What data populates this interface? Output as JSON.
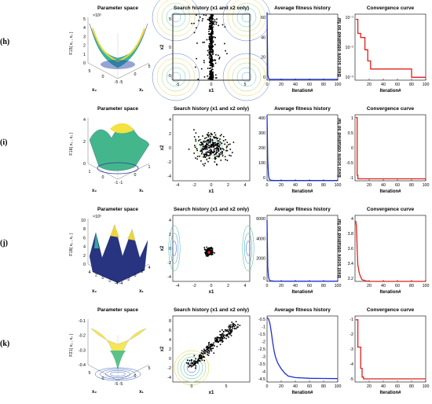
{
  "rows": [
    {
      "id": "h",
      "label": "(h)",
      "param": {
        "title": "Parameter space",
        "zlabel": "F15( x₁ , x₂ )",
        "exponent": "×10⁵",
        "zticks": [
          "5",
          "4",
          "3",
          "2",
          "1",
          "0"
        ],
        "x2ticks": [
          "5",
          "0",
          "-5"
        ],
        "x1ticks": [
          "-5",
          "0",
          "5"
        ],
        "x2label": "x₂",
        "x1label": "x₁"
      },
      "search": {
        "title": "Search history (x1 and x2 only)",
        "xlabel": "x1",
        "ylabel": "x2",
        "xticks": [
          "-5",
          "0",
          "5"
        ],
        "yticks": [
          "5",
          "0",
          "-5"
        ]
      },
      "fitness": {
        "title": "Average fitness history",
        "xlabel": "Iteration#",
        "xticks": [
          "0",
          "20",
          "40",
          "60",
          "80",
          "100"
        ],
        "yticks": [
          "60",
          "40",
          "20",
          "0"
        ]
      },
      "conv": {
        "title": "Convergence curve",
        "xlabel": "Iteration#",
        "ylabel": "Best score obtained so far",
        "xticks": [
          "20",
          "40",
          "60",
          "80",
          "100"
        ],
        "yticks": [
          "10⁻¹",
          "10⁻²",
          "10⁻³"
        ]
      }
    },
    {
      "id": "i",
      "label": "(i)",
      "param": {
        "title": "Parameter space",
        "zlabel": "F16( x₁ , x₂ )",
        "exponent": "",
        "zticks": [
          "4",
          "2",
          "0"
        ],
        "x2ticks": [
          "1",
          "0",
          "-1"
        ],
        "x1ticks": [
          "-1",
          "0",
          "1"
        ],
        "x2label": "x₂",
        "x1label": "x₁"
      },
      "search": {
        "title": "Search history (x1 and x2 only)",
        "xlabel": "x1",
        "ylabel": "x2",
        "xticks": [
          "-4",
          "-2",
          "0",
          "2",
          "4"
        ],
        "yticks": [
          "4",
          "2",
          "0",
          "-2",
          "-4"
        ]
      },
      "fitness": {
        "title": "Average fitness history",
        "xlabel": "Iteration#",
        "xticks": [
          "0",
          "20",
          "40",
          "60",
          "80",
          "100"
        ],
        "yticks": [
          "400",
          "300",
          "200",
          "100",
          "0"
        ]
      },
      "conv": {
        "title": "Convergence curve",
        "xlabel": "Iteration#",
        "ylabel": "Best score obtained so far",
        "xticks": [
          "20",
          "40",
          "60",
          "80",
          "100"
        ],
        "yticks": [
          "1",
          "0.5",
          "0",
          "-0.5",
          "-1"
        ]
      }
    },
    {
      "id": "j",
      "label": "(j)",
      "param": {
        "title": "Parameter space",
        "zlabel": "F18( x₁ , x₂ )",
        "exponent": "×10⁵",
        "zticks": [
          "10",
          "8",
          "6",
          "4",
          "2",
          "0"
        ],
        "x2ticks": [
          "4",
          "2",
          "0",
          "-2",
          "-4"
        ],
        "x1ticks": [
          "-4",
          "-2",
          "0",
          "2",
          "4"
        ],
        "x2label": "x₂",
        "x1label": "x₁"
      },
      "search": {
        "title": "Search history (x1 and x2 only)",
        "xlabel": "x1",
        "ylabel": "x2",
        "xticks": [
          "-4",
          "-2",
          "0",
          "2",
          "4"
        ],
        "yticks": [
          "4",
          "2",
          "0",
          "-2",
          "-4"
        ]
      },
      "fitness": {
        "title": "Average fitness history",
        "xlabel": "Iteration#",
        "xticks": [
          "0",
          "20",
          "40",
          "60",
          "80",
          "100"
        ],
        "yticks": [
          "6000",
          "4000",
          "2000",
          "0"
        ]
      },
      "conv": {
        "title": "Convergence curve",
        "xlabel": "Iteration#",
        "ylabel": "Best score obtained so far",
        "xticks": [
          "20",
          "40",
          "60",
          "80",
          "100"
        ],
        "yticks": [
          "4",
          "3.8",
          "3.6",
          "3.4",
          "3.2"
        ]
      }
    },
    {
      "id": "k",
      "label": "(k)",
      "param": {
        "title": "Parameter space",
        "zlabel": "F21( x₁ , x₂ )",
        "exponent": "",
        "zticks": [
          "-0.1",
          "-0.2",
          "-0.3",
          "-0.4"
        ],
        "x2ticks": [
          "5",
          "0",
          "-5"
        ],
        "x1ticks": [
          "-5",
          "0",
          "5"
        ],
        "x2label": "x₂",
        "x1label": "x₁"
      },
      "search": {
        "title": "Search history (x1 and x2 only)",
        "xlabel": "x1",
        "ylabel": "x2",
        "xticks": [
          "0",
          "5"
        ],
        "yticks": [
          "8",
          "6",
          "4",
          "2",
          "0",
          "-2",
          "-4"
        ]
      },
      "fitness": {
        "title": "Average fitness history",
        "xlabel": "Iteration#",
        "xticks": [
          "0",
          "20",
          "40",
          "60",
          "80",
          "100"
        ],
        "yticks": [
          "-0.5",
          "-1",
          "-1.5",
          "-2",
          "-2.5",
          "-3",
          "-3.5",
          "-4",
          "-4.5"
        ]
      },
      "conv": {
        "title": "Convergence curve",
        "xlabel": "Iteration#",
        "ylabel": "",
        "xticks": [
          "20",
          "40",
          "60",
          "80",
          "100"
        ],
        "yticks": [
          "-1",
          "-2",
          "-3",
          "-4",
          "-5"
        ]
      }
    }
  ],
  "colors": {
    "fitness_line": "#1f2fd6",
    "convergence_line": "#e0201c",
    "points": "#000000",
    "axes": "#000000"
  },
  "chart_data": [
    {
      "type": "line",
      "panel": "h-average-fitness",
      "title": "Average fitness history",
      "xlabel": "Iteration#",
      "ylabel": "",
      "xlim": [
        0,
        100
      ],
      "ylim": [
        0,
        70
      ],
      "x": [
        0,
        1,
        2,
        3,
        4,
        5,
        10,
        20,
        40,
        60,
        80,
        100
      ],
      "values": [
        72,
        6,
        2,
        1.2,
        0.9,
        0.8,
        0.8,
        0.8,
        0.8,
        0.8,
        0.8,
        0.8
      ]
    },
    {
      "type": "line",
      "panel": "h-convergence",
      "title": "Convergence curve",
      "xlabel": "Iteration#",
      "ylabel": "Best score obtained so far",
      "xlim": [
        0,
        100
      ],
      "ylim": [
        0.0003,
        0.2
      ],
      "yscale": "log",
      "x": [
        1,
        4,
        4,
        8,
        8,
        14,
        14,
        18,
        18,
        22,
        22,
        80,
        80,
        100
      ],
      "values": [
        0.12,
        0.12,
        0.03,
        0.03,
        0.02,
        0.02,
        0.006,
        0.006,
        0.002,
        0.002,
        0.0009,
        0.0009,
        0.0004,
        0.0004
      ]
    },
    {
      "type": "line",
      "panel": "i-average-fitness",
      "title": "Average fitness history",
      "xlabel": "Iteration#",
      "ylabel": "",
      "xlim": [
        0,
        100
      ],
      "ylim": [
        0,
        400
      ],
      "x": [
        0,
        1,
        2,
        3,
        4,
        6,
        10,
        20,
        40,
        60,
        80,
        100
      ],
      "values": [
        395,
        120,
        35,
        12,
        6,
        3,
        2,
        2,
        2,
        2,
        2,
        2
      ]
    },
    {
      "type": "line",
      "panel": "i-convergence",
      "title": "Convergence curve",
      "xlabel": "Iteration#",
      "ylabel": "Best score obtained so far",
      "xlim": [
        0,
        100
      ],
      "ylim": [
        -1.1,
        1.3
      ],
      "x": [
        1,
        3,
        3,
        4,
        4,
        100
      ],
      "values": [
        1.2,
        1.2,
        -0.9,
        -0.9,
        -1.03,
        -1.03
      ]
    },
    {
      "type": "line",
      "panel": "j-average-fitness",
      "title": "Average fitness history",
      "xlabel": "Iteration#",
      "ylabel": "",
      "xlim": [
        0,
        100
      ],
      "ylim": [
        0,
        7000
      ],
      "x": [
        0,
        1,
        2,
        3,
        4,
        6,
        10,
        20,
        40,
        60,
        80,
        100
      ],
      "values": [
        6500,
        1500,
        500,
        200,
        100,
        50,
        30,
        20,
        20,
        20,
        20,
        20
      ]
    },
    {
      "type": "line",
      "panel": "j-convergence",
      "title": "Convergence curve",
      "xlabel": "Iteration#",
      "ylabel": "Best score obtained so far",
      "xlim": [
        0,
        100
      ],
      "ylim": [
        3.0,
        4.2
      ],
      "x": [
        1,
        2,
        3,
        4,
        6,
        8,
        10,
        15,
        20,
        100
      ],
      "values": [
        4.1,
        4.0,
        3.6,
        3.3,
        3.15,
        3.08,
        3.03,
        3.01,
        3.0,
        3.0
      ]
    },
    {
      "type": "line",
      "panel": "k-average-fitness",
      "title": "Average fitness history",
      "xlabel": "Iteration#",
      "ylabel": "",
      "xlim": [
        0,
        100
      ],
      "ylim": [
        -4.7,
        -0.2
      ],
      "x": [
        0,
        2,
        4,
        6,
        8,
        10,
        12,
        15,
        20,
        25,
        30,
        40,
        60,
        80,
        100
      ],
      "values": [
        -0.3,
        -0.4,
        -0.7,
        -1.3,
        -2.0,
        -2.6,
        -3.0,
        -3.4,
        -3.8,
        -4.1,
        -4.3,
        -4.4,
        -4.45,
        -4.46,
        -4.47
      ]
    },
    {
      "type": "line",
      "panel": "k-convergence",
      "title": "Convergence curve",
      "xlabel": "Iteration#",
      "ylabel": "",
      "xlim": [
        0,
        100
      ],
      "ylim": [
        -5.3,
        0
      ],
      "x": [
        1,
        4,
        4,
        8,
        8,
        10,
        10,
        12,
        12,
        100
      ],
      "values": [
        -0.3,
        -0.3,
        -2.5,
        -2.5,
        -4.2,
        -4.2,
        -4.9,
        -4.9,
        -5.05,
        -5.05
      ]
    }
  ]
}
